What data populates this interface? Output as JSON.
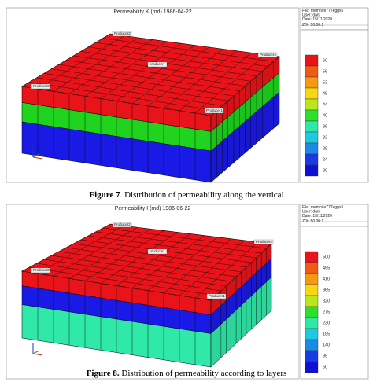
{
  "figures": [
    {
      "title": "Permeability K (md) 1986-04-22",
      "info": [
        "File: memoire777eggx5",
        "User: dark",
        "Date: 15/11/2020",
        "Z/X: 50.00:1"
      ],
      "wells": [
        "Producer2",
        "producer",
        "Producer4",
        "Producer3",
        "Producer1"
      ],
      "colorbar": [
        60,
        56,
        52,
        48,
        44,
        40,
        36,
        32,
        28,
        24,
        20
      ],
      "caption": {
        "label": "Figure 7",
        "text": ". Distribution of permeability along the vertical"
      }
    },
    {
      "title": "Permeability I (md) 1986-06-22",
      "info": [
        "File: memoire777eggx5",
        "User: dark",
        "Date: 15/11/2020",
        "Z/X: 50.00:1"
      ],
      "wells": [
        "Producer2",
        "producer",
        "Producer4",
        "Producer3",
        "Producer1"
      ],
      "colorbar": [
        500,
        455,
        410,
        365,
        320,
        275,
        230,
        185,
        140,
        95,
        50
      ],
      "caption": {
        "label": "Figure 8.",
        "text": " Distribution of permeability according to layers"
      }
    }
  ]
}
